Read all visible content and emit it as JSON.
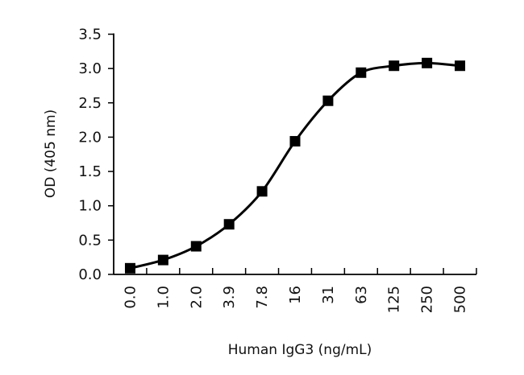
{
  "chart_data": {
    "type": "line",
    "title": "",
    "xlabel": "Human IgG3 (ng/mL)",
    "ylabel": "OD (405 nm)",
    "categories": [
      "0.0",
      "1.0",
      "2.0",
      "3.9",
      "7.8",
      "16",
      "31",
      "63",
      "125",
      "250",
      "500"
    ],
    "series": [
      {
        "name": "Human IgG3",
        "values": [
          0.09,
          0.21,
          0.41,
          0.73,
          1.21,
          1.94,
          2.53,
          2.94,
          3.04,
          3.08,
          3.04
        ]
      }
    ],
    "ylim": [
      0,
      3.5
    ],
    "yticks": [
      "0.0",
      "0.5",
      "1.0",
      "1.5",
      "2.0",
      "2.5",
      "3.0",
      "3.5"
    ],
    "grid": false,
    "legend": "none",
    "marker": "square",
    "color": "#000000"
  }
}
